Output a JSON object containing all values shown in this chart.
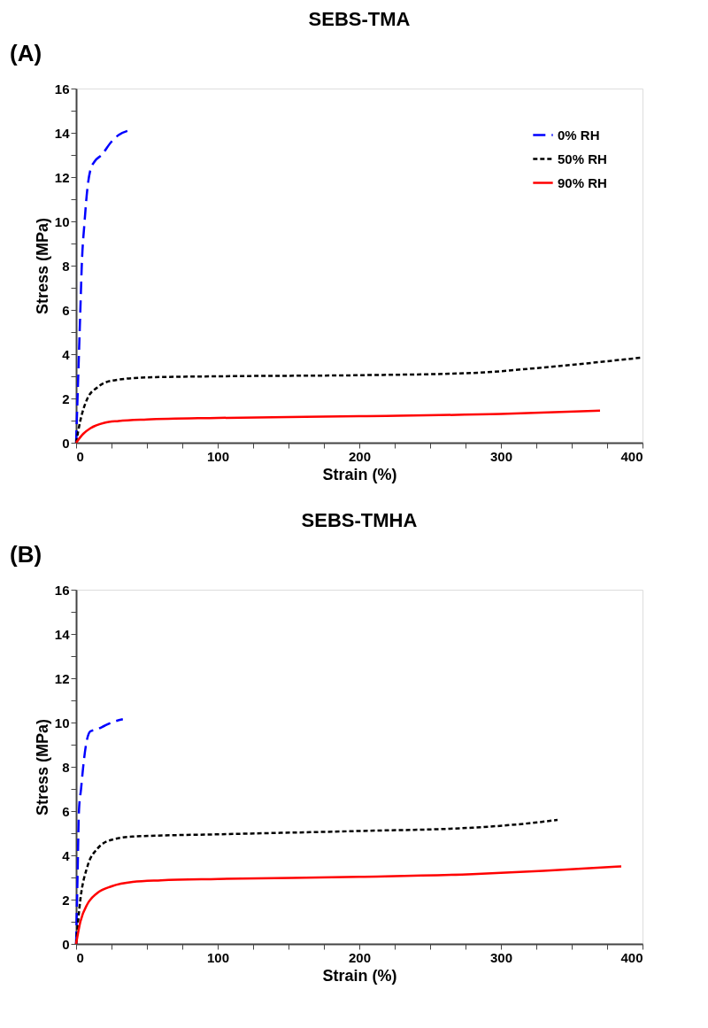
{
  "chart_data": [
    {
      "type": "line",
      "title": "SEBS-TMA",
      "xlabel": "Strain (%)",
      "ylabel": "Stress (MPa)",
      "annotations": [
        "(A)"
      ],
      "xlim": [
        0,
        400
      ],
      "ylim": [
        0,
        16
      ],
      "xticks": [
        0,
        {
          "value": 25,
          "label": null
        },
        {
          "value": 50,
          "label": null
        },
        {
          "value": 75,
          "label": null
        },
        100,
        {
          "value": 125,
          "label": null
        },
        {
          "value": 150,
          "label": null
        },
        {
          "value": 175,
          "label": null
        },
        200,
        {
          "value": 225,
          "label": null
        },
        {
          "value": 250,
          "label": null
        },
        {
          "value": 275,
          "label": null
        },
        300,
        {
          "value": 325,
          "label": null
        },
        {
          "value": 350,
          "label": null
        },
        {
          "value": 375,
          "label": null
        },
        400
      ],
      "yticks": [
        0,
        {
          "value": 1,
          "label": null
        },
        2,
        {
          "value": 3,
          "label": null
        },
        4,
        {
          "value": 5,
          "label": null
        },
        6,
        {
          "value": 7,
          "label": null
        },
        8,
        {
          "value": 9,
          "label": null
        },
        10,
        {
          "value": 11,
          "label": null
        },
        12,
        {
          "value": 13,
          "label": null
        },
        14,
        {
          "value": 15,
          "label": null
        },
        16
      ],
      "grid": false,
      "legend": "top right",
      "marker": "none",
      "series": [
        {
          "name": "0% RH",
          "color": "#0000ff",
          "line_style": "dashed",
          "x": [
            0,
            1,
            2,
            3,
            4,
            6,
            8,
            10,
            13,
            18,
            25,
            30,
            37
          ],
          "values": [
            0,
            2,
            4,
            6,
            8,
            10,
            11.5,
            12.3,
            12.7,
            13,
            13.6,
            13.9,
            14.1
          ]
        },
        {
          "name": "50% RH",
          "color": "#000000",
          "line_style": "dotted",
          "x": [
            0,
            3,
            8,
            15,
            25,
            50,
            100,
            200,
            280,
            330,
            400
          ],
          "values": [
            0,
            1,
            2,
            2.5,
            2.8,
            2.95,
            3.0,
            3.05,
            3.15,
            3.4,
            3.85
          ]
        },
        {
          "name": "90% RH",
          "color": "#ff0000",
          "line_style": "solid",
          "x": [
            0,
            5,
            10,
            20,
            30,
            50,
            100,
            200,
            300,
            370
          ],
          "values": [
            0,
            0.4,
            0.65,
            0.9,
            0.98,
            1.05,
            1.12,
            1.2,
            1.3,
            1.45
          ]
        }
      ]
    },
    {
      "type": "line",
      "title": "SEBS-TMHA",
      "xlabel": "Strain (%)",
      "ylabel": "Stress (MPa)",
      "annotations": [
        "(B)"
      ],
      "xlim": [
        0,
        400
      ],
      "ylim": [
        0,
        16
      ],
      "xticks": [
        0,
        {
          "value": 25,
          "label": null
        },
        {
          "value": 50,
          "label": null
        },
        {
          "value": 75,
          "label": null
        },
        100,
        {
          "value": 125,
          "label": null
        },
        {
          "value": 150,
          "label": null
        },
        {
          "value": 175,
          "label": null
        },
        200,
        {
          "value": 225,
          "label": null
        },
        {
          "value": 250,
          "label": null
        },
        {
          "value": 275,
          "label": null
        },
        300,
        {
          "value": 325,
          "label": null
        },
        {
          "value": 350,
          "label": null
        },
        {
          "value": 375,
          "label": null
        },
        400
      ],
      "yticks": [
        0,
        {
          "value": 1,
          "label": null
        },
        2,
        {
          "value": 3,
          "label": null
        },
        4,
        {
          "value": 5,
          "label": null
        },
        6,
        {
          "value": 7,
          "label": null
        },
        8,
        {
          "value": 9,
          "label": null
        },
        10,
        {
          "value": 11,
          "label": null
        },
        12,
        {
          "value": 13,
          "label": null
        },
        14,
        {
          "value": 15,
          "label": null
        },
        16
      ],
      "grid": false,
      "legend": "top right",
      "marker": "none",
      "series": [
        {
          "name": "0% RH",
          "color": "#0000ff",
          "line_style": "dashed",
          "x": [
            0,
            1,
            2,
            3.5,
            5,
            7,
            10,
            15,
            20,
            25,
            33
          ],
          "values": [
            0,
            3,
            6,
            7,
            8,
            9,
            9.6,
            9.7,
            9.85,
            10,
            10.15
          ]
        },
        {
          "name": "50% RH",
          "color": "#000000",
          "line_style": "dotted",
          "x": [
            0,
            3,
            8,
            15,
            25,
            40,
            100,
            200,
            280,
            320,
            340
          ],
          "values": [
            0,
            2,
            3.5,
            4.3,
            4.7,
            4.85,
            4.95,
            5.1,
            5.25,
            5.45,
            5.6
          ]
        },
        {
          "name": "90% RH",
          "color": "#ff0000",
          "line_style": "solid",
          "x": [
            0,
            3,
            8,
            15,
            25,
            40,
            60,
            100,
            200,
            280,
            330,
            385
          ],
          "values": [
            0,
            1,
            1.8,
            2.3,
            2.6,
            2.8,
            2.87,
            2.93,
            3.03,
            3.15,
            3.3,
            3.5
          ]
        }
      ]
    }
  ]
}
